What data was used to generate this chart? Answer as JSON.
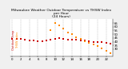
{
  "title": "Milwaukee Weather Outdoor Temperature vs THSW Index\nper Hour\n(24 Hours)",
  "title_fontsize": 3.2,
  "bg_color": "#f0f0f0",
  "plot_bg": "#ffffff",
  "grid_color": "#aaaaaa",
  "x_hours": [
    0,
    1,
    2,
    3,
    4,
    5,
    6,
    7,
    8,
    9,
    10,
    11,
    12,
    13,
    14,
    15,
    16,
    17,
    18,
    19,
    20,
    21,
    22,
    23
  ],
  "temp_values": [
    44,
    44,
    44,
    43,
    42,
    42,
    41,
    41,
    42,
    43,
    44,
    45,
    44,
    43,
    43,
    43,
    42,
    42,
    41,
    40,
    40,
    39,
    38,
    37
  ],
  "thsw_values": [
    null,
    null,
    null,
    null,
    null,
    null,
    null,
    null,
    null,
    55,
    65,
    62,
    58,
    52,
    50,
    46,
    44,
    41,
    38,
    36,
    34,
    31,
    28,
    25
  ],
  "temp_color": "#cc0000",
  "thsw_color": "#ff8800",
  "marker_size": 1.8,
  "ylim": [
    20,
    70
  ],
  "ytick_positions": [
    30,
    35,
    40,
    45,
    50,
    55,
    60,
    65
  ],
  "ytick_labels": [
    "30",
    "35",
    "40",
    "45",
    "50",
    "55",
    "60",
    "65"
  ],
  "xticks": [
    0,
    2,
    4,
    6,
    8,
    10,
    12,
    14,
    16,
    18,
    20,
    22
  ],
  "tick_fontsize": 2.8,
  "legend_label_temp": "Outdoor Temp",
  "legend_label_thsw": "THSW Index",
  "legend_fontsize": 2.5,
  "figsize": [
    1.6,
    0.87
  ],
  "dpi": 100
}
